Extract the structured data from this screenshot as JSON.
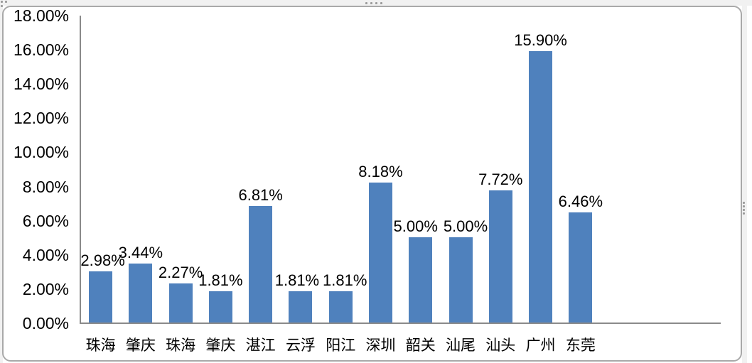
{
  "chart_data": {
    "type": "bar",
    "title": "",
    "xlabel": "",
    "ylabel": "",
    "categories": [
      "珠海",
      "肇庆",
      "珠海",
      "肇庆",
      "湛江",
      "云浮",
      "阳江",
      "深圳",
      "韶关",
      "汕尾",
      "汕头",
      "广州",
      "东莞"
    ],
    "values": [
      2.98,
      3.44,
      2.27,
      1.81,
      6.81,
      1.81,
      1.81,
      8.18,
      5.0,
      5.0,
      7.72,
      15.9,
      6.46
    ],
    "data_labels": [
      "2.98%",
      "3.44%",
      "2.27%",
      "1.81%",
      "6.81%",
      "1.81%",
      "1.81%",
      "8.18%",
      "5.00%",
      "5.00%",
      "7.72%",
      "15.90%",
      "6.46%"
    ],
    "y_ticks": [
      "18.00%",
      "16.00%",
      "14.00%",
      "12.00%",
      "10.00%",
      "8.00%",
      "6.00%",
      "4.00%",
      "2.00%",
      "0.00%"
    ],
    "ylim": [
      0,
      18
    ],
    "grid": false,
    "legend": false,
    "bar_color": "#4f81bd",
    "axis_color": "#8a8a8a",
    "label_color": "#000000"
  },
  "frame": {
    "selected": true,
    "border_color": "#a9a9a9",
    "handle_color": "#9b9b9b"
  }
}
